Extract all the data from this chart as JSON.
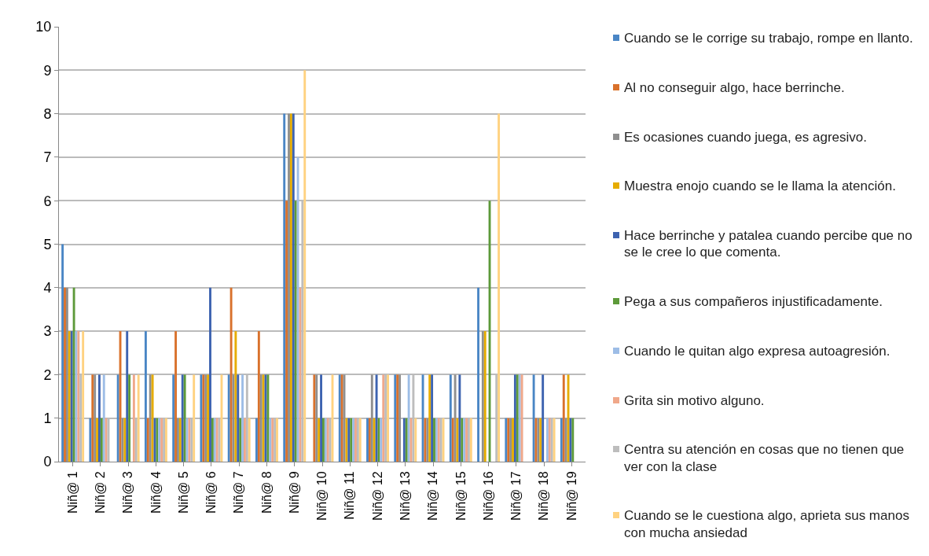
{
  "chart_data": {
    "type": "bar",
    "categories": [
      "Niñ@ 1",
      "Niñ@ 2",
      "Niñ@ 3",
      "Niñ@ 4",
      "Niñ@ 5",
      "Niñ@ 6",
      "Niñ@ 7",
      "Niñ@ 8",
      "Niñ@ 9",
      "Niñ@ 10",
      "Niñ@ 11",
      "Niñ@ 12",
      "Niñ@ 13",
      "Niñ@ 14",
      "Niñ@ 15",
      "Niñ@ 16",
      "Niñ@ 17",
      "Niñ@ 18",
      "Niñ@ 19"
    ],
    "series": [
      {
        "name": "Cuando se le corrige su trabajo, rompe en llanto.",
        "color": "#4a86c5",
        "values": [
          5,
          1,
          2,
          3,
          2,
          2,
          2,
          1,
          8,
          0,
          2,
          1,
          2,
          2,
          2,
          4,
          1,
          2,
          1
        ]
      },
      {
        "name": "Al no conseguir algo, hace berrinche.",
        "color": "#d9712b",
        "values": [
          4,
          2,
          3,
          1,
          3,
          2,
          4,
          3,
          6,
          2,
          2,
          1,
          2,
          1,
          1,
          0,
          1,
          1,
          2
        ]
      },
      {
        "name": "Es ocasiones cuando juega, es agresivo.",
        "color": "#8f8f8f",
        "values": [
          4,
          2,
          1,
          2,
          1,
          2,
          2,
          2,
          8,
          2,
          2,
          2,
          2,
          1,
          2,
          3,
          1,
          1,
          1
        ]
      },
      {
        "name": "Muestra enojo cuando se le llama la atención.",
        "color": "#e6ac00",
        "values": [
          3,
          1,
          1,
          2,
          1,
          2,
          3,
          2,
          8,
          1,
          1,
          1,
          0,
          2,
          1,
          3,
          1,
          1,
          2
        ]
      },
      {
        "name": "Hace berrinche y patalea cuando percibe que no se le cree lo que comenta.",
        "color": "#3d63b0",
        "values": [
          3,
          2,
          3,
          1,
          2,
          4,
          2,
          2,
          8,
          2,
          1,
          2,
          1,
          2,
          2,
          0,
          2,
          2,
          1
        ]
      },
      {
        "name": "Pega a sus compañeros injustificadamente.",
        "color": "#5d9a3a",
        "values": [
          4,
          1,
          2,
          1,
          2,
          1,
          1,
          2,
          6,
          1,
          1,
          1,
          1,
          1,
          1,
          6,
          2,
          0,
          1
        ]
      },
      {
        "name": "Cuando le quitan algo expresa autoagresión.",
        "color": "#9dbde6",
        "values": [
          3,
          2,
          0,
          1,
          1,
          1,
          2,
          1,
          7,
          1,
          1,
          1,
          2,
          1,
          1,
          0,
          2,
          1,
          0
        ]
      },
      {
        "name": "Grita sin motivo alguno.",
        "color": "#f0a88a",
        "values": [
          3,
          1,
          2,
          1,
          1,
          1,
          1,
          1,
          4,
          1,
          1,
          2,
          1,
          1,
          1,
          0,
          2,
          1,
          0
        ]
      },
      {
        "name": "Centra su atención en cosas que no tienen que ver con la clase",
        "color": "#bdbdbd",
        "values": [
          2,
          1,
          1,
          1,
          1,
          1,
          2,
          1,
          6,
          1,
          1,
          2,
          2,
          1,
          1,
          2,
          0,
          1,
          0
        ]
      },
      {
        "name": "Cuando se le cuestiona algo, aprieta sus manos con mucha ansiedad",
        "color": "#ffd280",
        "values": [
          3,
          0,
          2,
          1,
          2,
          2,
          1,
          1,
          9,
          2,
          1,
          2,
          1,
          1,
          1,
          8,
          0,
          1,
          0
        ]
      }
    ],
    "ylim": [
      0,
      10
    ],
    "yticks": [
      0,
      1,
      2,
      3,
      4,
      5,
      6,
      7,
      8,
      9,
      10
    ],
    "grid": "y",
    "legend": "right"
  }
}
